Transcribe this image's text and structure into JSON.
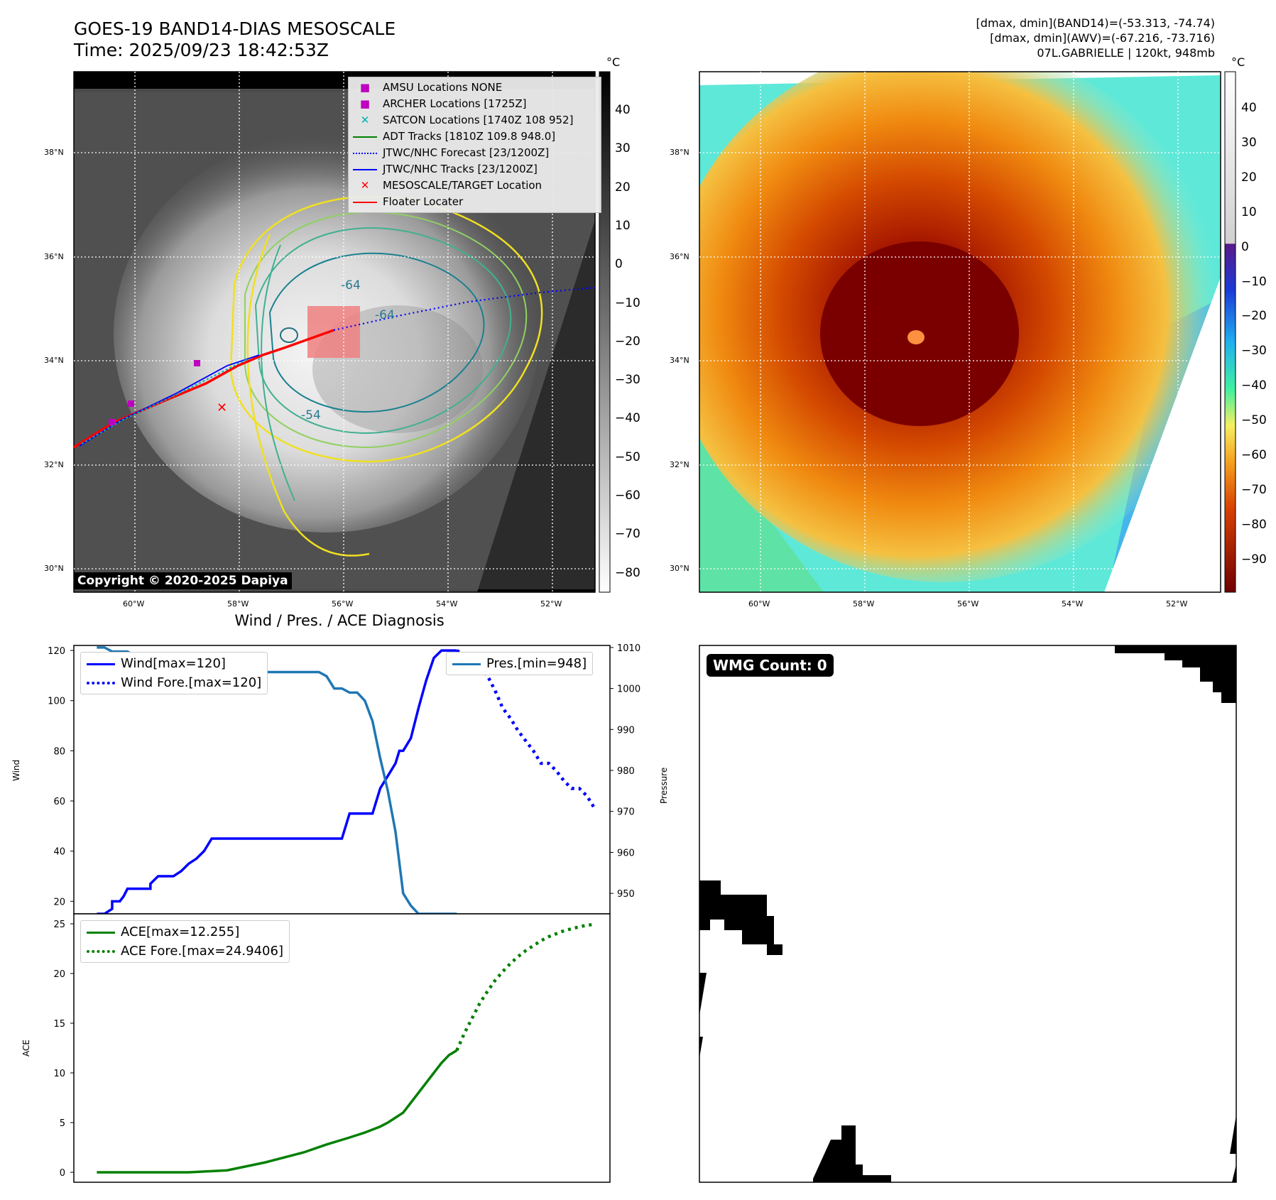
{
  "header": {
    "title_line1": "GOES-19 BAND14-DIAS MESOSCALE",
    "title_line2": "Time: 2025/09/23 18:42:53Z",
    "info_line1": "[dmax, dmin](BAND14)=(-53.313, -74.74)",
    "info_line2": "[dmax, dmin](AWV)=(-67.216, -73.716)",
    "info_line3": "07L.GABRIELLE | 120kt, 948mb"
  },
  "map_left": {
    "lat_labels": [
      "38°N",
      "36°N",
      "34°N",
      "32°N",
      "30°N"
    ],
    "lon_labels": [
      "60°W",
      "58°W",
      "56°W",
      "54°W",
      "52°W"
    ],
    "contour_labels": [
      "-64",
      "-64",
      "-54"
    ],
    "copyright": "Copyright © 2020-2025 Dapiya",
    "colorbar_unit": "°C",
    "colorbar_ticks": [
      "40",
      "30",
      "20",
      "10",
      "0",
      "−10",
      "−20",
      "−30",
      "−40",
      "−50",
      "−60",
      "−70",
      "−80"
    ],
    "legend": [
      {
        "label": "AMSU Locations NONE",
        "marker": "square",
        "color": "#c000c0"
      },
      {
        "label": "ARCHER Locations [1725Z]",
        "marker": "square",
        "color": "#c000c0"
      },
      {
        "label": "SATCON Locations [1740Z 108 952]",
        "marker": "x",
        "color": "#00b0b0"
      },
      {
        "label": "ADT Tracks [1810Z 109.8 948.0]",
        "marker": "line",
        "color": "#008000"
      },
      {
        "label": "JTWC/NHC Forecast [23/1200Z]",
        "marker": "dotted",
        "color": "#0000ff"
      },
      {
        "label": "JTWC/NHC Tracks [23/1200Z]",
        "marker": "line-dot",
        "color": "#0000ff"
      },
      {
        "label": "MESOSCALE/TARGET Location",
        "marker": "x",
        "color": "#ff0000"
      },
      {
        "label": "Floater Locater",
        "marker": "line",
        "color": "#ff0000"
      }
    ]
  },
  "map_right": {
    "lat_labels": [
      "38°N",
      "36°N",
      "34°N",
      "32°N",
      "30°N"
    ],
    "lon_labels": [
      "60°W",
      "58°W",
      "56°W",
      "54°W",
      "52°W"
    ],
    "colorbar_unit": "°C",
    "colorbar_ticks": [
      "40",
      "30",
      "20",
      "10",
      "0",
      "−10",
      "−20",
      "−30",
      "−40",
      "−50",
      "−60",
      "−70",
      "−80",
      "−90"
    ]
  },
  "panel_title": "Wind / Pres. / ACE Diagnosis",
  "wmg": {
    "label": "WMG Count: 0"
  },
  "chart_data": [
    {
      "type": "line",
      "title": "Wind / Pres. / ACE Diagnosis",
      "ylabel": "Wind",
      "y2label": "Pressure",
      "ylim": [
        15,
        122
      ],
      "y2lim": [
        945,
        1010.5
      ],
      "yticks": [
        "20",
        "40",
        "60",
        "80",
        "100",
        "120"
      ],
      "y2ticks": [
        "950",
        "960",
        "970",
        "980",
        "990",
        "1000",
        "1010"
      ],
      "xlim": [
        0,
        70
      ],
      "series": [
        {
          "name": "Wind[max=120]",
          "axis": "left",
          "style": "solid",
          "color": "#0000ff",
          "x": [
            3,
            4,
            5,
            5,
            6,
            6.5,
            7,
            8,
            9,
            10,
            10,
            11,
            12,
            13,
            14,
            15,
            16,
            17,
            18,
            19,
            20,
            21,
            22,
            23,
            24,
            25,
            26,
            27,
            28,
            29,
            30,
            31,
            32,
            33,
            34,
            35,
            36,
            37,
            38,
            39,
            40,
            41,
            42,
            42.5,
            43,
            44,
            45,
            46,
            47,
            48,
            49,
            50
          ],
          "y": [
            15,
            15,
            17,
            20,
            20,
            22,
            25,
            25,
            25,
            25,
            27,
            30,
            30,
            30,
            32,
            35,
            37,
            40,
            45,
            45,
            45,
            45,
            45,
            45,
            45,
            45,
            45,
            45,
            45,
            45,
            45,
            45,
            45,
            45,
            45,
            45,
            55,
            55,
            55,
            55,
            65,
            70,
            75,
            80,
            80,
            85,
            97,
            108,
            117,
            120,
            120,
            120
          ]
        },
        {
          "name": "Wind Fore.[max=120]",
          "axis": "left",
          "style": "dotted",
          "color": "#0000ff",
          "x": [
            50,
            51,
            52,
            53,
            54,
            55,
            56,
            57,
            58,
            59,
            60,
            61,
            62,
            63,
            64,
            65,
            66,
            67,
            68
          ],
          "y": [
            120,
            118,
            116,
            113,
            110,
            104,
            97,
            93,
            88,
            84,
            80,
            75,
            75,
            72,
            68,
            65,
            65,
            62,
            57
          ]
        },
        {
          "name": "Pres.[min=948]",
          "axis": "right",
          "style": "solid",
          "color": "#1f77b4",
          "x": [
            3,
            4,
            5,
            6,
            7,
            8,
            9,
            10,
            11,
            12,
            13,
            14,
            15,
            16,
            17,
            18,
            19,
            20,
            21,
            22,
            23,
            24,
            25,
            26,
            27,
            28,
            29,
            30,
            31,
            32,
            33,
            34,
            35,
            36,
            37,
            38,
            39,
            40,
            41,
            42,
            43,
            44,
            45,
            46,
            47,
            48,
            49,
            50
          ],
          "y": [
            1010,
            1010,
            1009,
            1009,
            1009,
            1008,
            1008,
            1007,
            1006,
            1006,
            1006,
            1005,
            1005,
            1005,
            1004,
            1004,
            1004,
            1004,
            1004,
            1004,
            1004,
            1004,
            1004,
            1004,
            1004,
            1004,
            1004,
            1004,
            1004,
            1004,
            1003,
            1000,
            1000,
            999,
            999,
            997,
            992,
            983,
            975,
            965,
            950,
            947,
            945,
            945,
            945,
            945,
            945,
            945
          ]
        }
      ]
    },
    {
      "type": "line",
      "ylabel": "ACE",
      "ylim": [
        -1,
        26
      ],
      "yticks": [
        "0",
        "5",
        "10",
        "15",
        "20",
        "25"
      ],
      "xlim": [
        0,
        70
      ],
      "series": [
        {
          "name": "ACE[max=12.255]",
          "style": "solid",
          "color": "#008000",
          "x": [
            3,
            8,
            15,
            20,
            25,
            30,
            33,
            36,
            38,
            40,
            41,
            42,
            43,
            44,
            45,
            46,
            47,
            48,
            49,
            50
          ],
          "y": [
            0,
            0,
            0,
            0.2,
            1.0,
            2.0,
            2.8,
            3.5,
            4.0,
            4.6,
            5.0,
            5.5,
            6.0,
            7.0,
            8.0,
            9.0,
            10.0,
            11.0,
            11.8,
            12.255
          ]
        },
        {
          "name": "ACE Fore.[max=24.9406]",
          "style": "dotted",
          "color": "#008000",
          "x": [
            50,
            51,
            52,
            53,
            54,
            55,
            56,
            57,
            58,
            59,
            60,
            61,
            62,
            63,
            64,
            65,
            66,
            67,
            68
          ],
          "y": [
            12.255,
            14.0,
            15.5,
            17.0,
            18.2,
            19.3,
            20.2,
            21.0,
            21.7,
            22.3,
            22.8,
            23.3,
            23.7,
            24.0,
            24.3,
            24.5,
            24.7,
            24.85,
            24.9406
          ]
        }
      ]
    }
  ]
}
